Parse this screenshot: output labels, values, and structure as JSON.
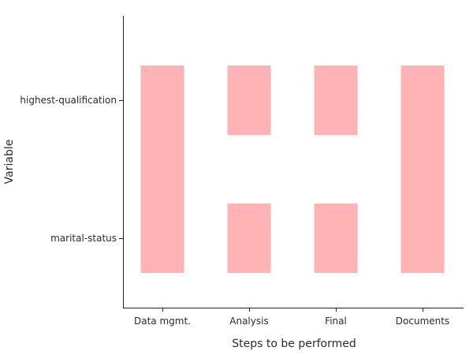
{
  "chart_data": {
    "type": "heatmap",
    "title": "",
    "xlabel": "Steps to be performed",
    "ylabel": "Variable",
    "categories": [
      "Data mgmt.",
      "Analysis",
      "Final",
      "Documents"
    ],
    "y_categories": [
      "highest-qualification",
      "marital-status"
    ],
    "cells": [
      {
        "x": "Data mgmt.",
        "y": "highest-qualification",
        "value": 1
      },
      {
        "x": "Data mgmt.",
        "y": "marital-status",
        "value": 1
      },
      {
        "x": "Analysis",
        "y": "highest-qualification",
        "value": 1
      },
      {
        "x": "Analysis",
        "y": "marital-status",
        "value": 1
      },
      {
        "x": "Final",
        "y": "highest-qualification",
        "value": 1
      },
      {
        "x": "Final",
        "y": "marital-status",
        "value": 1
      },
      {
        "x": "Documents",
        "y": "highest-qualification",
        "value": 1
      },
      {
        "x": "Documents",
        "y": "marital-status",
        "value": 1
      }
    ],
    "merged_columns": [
      "Data mgmt.",
      "Documents"
    ],
    "cell_color": "#ffb3b5",
    "grid": false,
    "legend": "none"
  }
}
